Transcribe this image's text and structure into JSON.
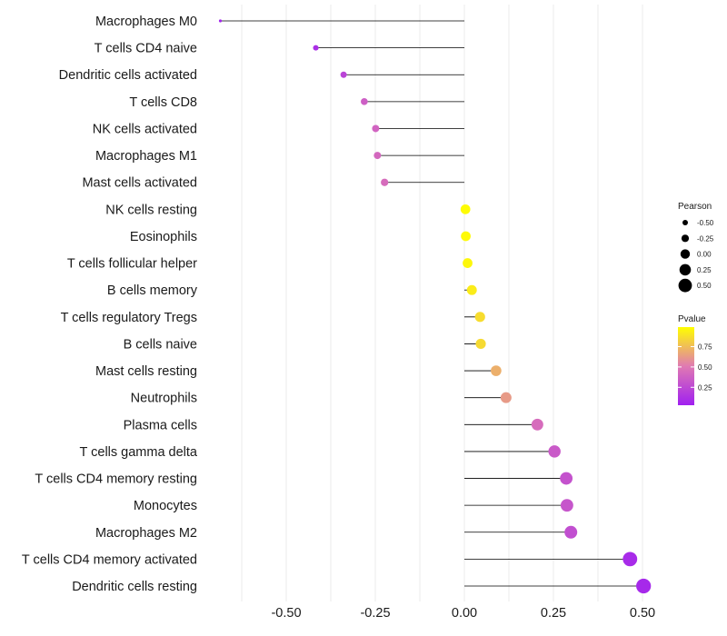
{
  "chart_data": {
    "type": "lollipop",
    "title": "",
    "xlabel": "",
    "ylabel": "",
    "xlim": [
      -0.62,
      0.52
    ],
    "xticks": [
      -0.5,
      -0.25,
      0.0,
      0.25,
      0.5
    ],
    "xtick_labels": [
      "-0.50",
      "-0.25",
      "0.00",
      "0.25",
      "0.50"
    ],
    "grid": true,
    "legend_position": "right",
    "categories": [
      "Macrophages M0",
      "T cells CD4 naive",
      "Dendritic cells activated",
      "T cells CD8",
      "NK cells activated",
      "Macrophages M1",
      "Mast cells activated",
      "NK cells resting",
      "Eosinophils",
      "T cells follicular helper",
      "B cells memory",
      "T cells regulatory  Tregs ",
      "B cells naive",
      "Mast cells resting",
      "Neutrophils",
      "Plasma cells",
      "T cells gamma delta",
      "T cells CD4 memory resting",
      "Monocytes",
      "Macrophages M2",
      "T cells CD4 memory activated",
      "Dendritic cells resting"
    ],
    "pearson": [
      -0.685,
      -0.417,
      -0.339,
      -0.281,
      -0.249,
      -0.244,
      -0.224,
      0.003,
      0.004,
      0.009,
      0.021,
      0.044,
      0.046,
      0.089,
      0.117,
      0.205,
      0.253,
      0.286,
      0.288,
      0.299,
      0.465,
      0.503
    ],
    "pvalue": [
      0.02,
      0.08,
      0.2,
      0.35,
      0.38,
      0.4,
      0.42,
      0.99,
      0.98,
      0.97,
      0.93,
      0.87,
      0.86,
      0.7,
      0.62,
      0.42,
      0.32,
      0.28,
      0.3,
      0.26,
      0.06,
      0.05
    ],
    "size_legend": {
      "title": "Pearson",
      "values": [
        -0.5,
        -0.25,
        0.0,
        0.25,
        0.5
      ],
      "labels": [
        "-0.50",
        "-0.25",
        "0.00",
        "0.25",
        "0.50"
      ]
    },
    "color_legend": {
      "title": "Pvalue",
      "ticks": [
        0.25,
        0.5,
        0.75
      ],
      "labels": [
        "0.25",
        "0.50",
        "0.75"
      ],
      "low_color": "#a020f0",
      "mid_color": "#e07ab2",
      "high_color": "#ffff00"
    }
  }
}
